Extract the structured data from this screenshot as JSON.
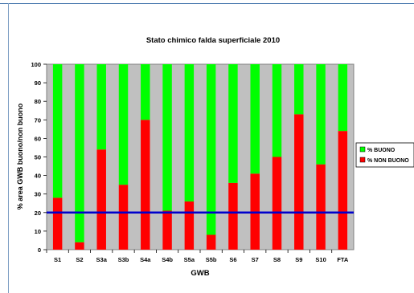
{
  "chart_data": {
    "type": "bar",
    "stacked": true,
    "title": "Stato chimico falda superficiale 2010",
    "xlabel": "GWB",
    "ylabel": "% area GWB buono/non buono",
    "ylim": [
      0,
      100
    ],
    "yticks": [
      "0",
      "10",
      "20",
      "30",
      "40",
      "50",
      "60",
      "70",
      "80",
      "90",
      "100"
    ],
    "grid": false,
    "legend_position": "right",
    "categories": [
      "S1",
      "S2",
      "S3a",
      "S3b",
      "S4a",
      "S4b",
      "S5a",
      "S5b",
      "S6",
      "S7",
      "S8",
      "S9",
      "S10",
      "FTA"
    ],
    "series": [
      {
        "name": "% NON BUONO",
        "color": "#ff0000",
        "values": [
          28,
          4,
          54,
          35,
          70,
          21,
          26,
          8,
          36,
          41,
          50,
          73,
          46,
          64
        ]
      },
      {
        "name": "% BUONO",
        "color": "#00ff00",
        "values": [
          72,
          96,
          46,
          65,
          30,
          79,
          74,
          92,
          64,
          59,
          50,
          27,
          54,
          36
        ]
      }
    ],
    "legend": [
      "% BUONO",
      "% NON BUONO"
    ],
    "threshold_line": {
      "value": 20,
      "color": "#0000cc"
    },
    "plot_background": "#c0c0c0"
  }
}
